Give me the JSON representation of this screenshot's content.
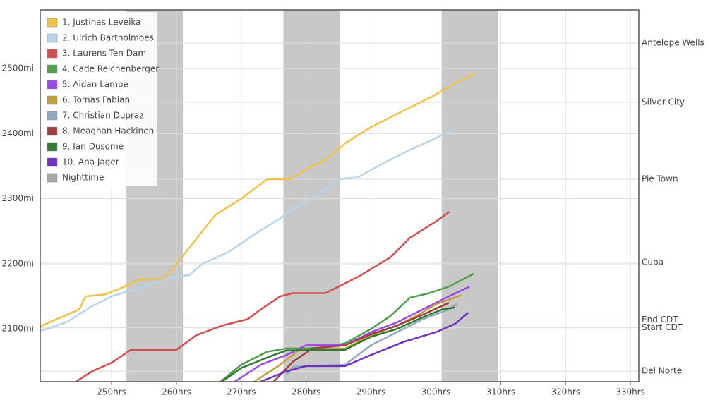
{
  "chart_data": {
    "type": "line",
    "xlim": [
      239,
      331.3
    ],
    "ylim": [
      2019,
      2590
    ],
    "y2lim": [
      2019,
      2590
    ],
    "xticks": [
      {
        "value": 250,
        "label": "250hrs"
      },
      {
        "value": 260,
        "label": "260hrs"
      },
      {
        "value": 270,
        "label": "270hrs"
      },
      {
        "value": 280,
        "label": "280hrs"
      },
      {
        "value": 290,
        "label": "290hrs"
      },
      {
        "value": 300,
        "label": "300hrs"
      },
      {
        "value": 310,
        "label": "310hrs"
      },
      {
        "value": 320,
        "label": "320hrs"
      },
      {
        "value": 330,
        "label": "330hrs"
      }
    ],
    "yticks": [
      {
        "value": 2100,
        "label": "2100mi"
      },
      {
        "value": 2200,
        "label": "2200mi"
      },
      {
        "value": 2300,
        "label": "2300mi"
      },
      {
        "value": 2400,
        "label": "2400mi"
      },
      {
        "value": 2500,
        "label": "2500mi"
      }
    ],
    "y2ticks": [
      {
        "value": 2035,
        "label": "Del Norte"
      },
      {
        "value": 2102,
        "label": "Start CDT"
      },
      {
        "value": 2114,
        "label": "End CDT"
      },
      {
        "value": 2202,
        "label": "Cuba"
      },
      {
        "value": 2330,
        "label": "Pie Town"
      },
      {
        "value": 2448,
        "label": "Silver City"
      },
      {
        "value": 2539,
        "label": "Antelope Wells"
      }
    ],
    "grid": true,
    "night": {
      "name": "Nighttime",
      "color": "#c8c8c8",
      "ranges": [
        [
          252.3,
          261.0
        ],
        [
          276.5,
          285.2
        ],
        [
          300.9,
          309.6
        ]
      ]
    },
    "series": [
      {
        "name": "1. Justinas Leveika",
        "color": "#f0c24a",
        "x": [
          239,
          245,
          246,
          249,
          252,
          254,
          258,
          260,
          262,
          266,
          270,
          274,
          277.5,
          280,
          283,
          286,
          290,
          295,
          300,
          303,
          306
        ],
        "values": [
          2104,
          2130,
          2150,
          2153,
          2165,
          2175,
          2177,
          2200,
          2225,
          2275,
          2300,
          2330,
          2330,
          2345,
          2360,
          2385,
          2410,
          2435,
          2460,
          2478,
          2492
        ]
      },
      {
        "name": "2. Ulrich Bartholmoes",
        "color": "#b8d4ea",
        "x": [
          239,
          243,
          247,
          250,
          254,
          259,
          262,
          264,
          268,
          272,
          276,
          278,
          281,
          285,
          288,
          292,
          296,
          300,
          303.4
        ],
        "values": [
          2097,
          2110,
          2135,
          2150,
          2162,
          2178,
          2183,
          2200,
          2218,
          2245,
          2270,
          2285,
          2300,
          2330,
          2333,
          2355,
          2375,
          2393,
          2410
        ]
      },
      {
        "name": "3. Laurens Ten Dam",
        "color": "#d05050",
        "x": [
          244.5,
          247,
          250,
          253,
          260,
          263,
          267,
          271,
          273,
          276,
          278,
          283,
          288,
          293,
          296,
          300,
          302.1
        ],
        "values": [
          2019,
          2035,
          2048,
          2068,
          2068,
          2090,
          2105,
          2115,
          2130,
          2150,
          2155,
          2155,
          2180,
          2210,
          2240,
          2265,
          2280
        ]
      },
      {
        "name": "4. Cade Reichenberger",
        "color": "#50a050",
        "x": [
          266.8,
          270,
          274,
          277,
          280,
          283,
          286,
          290,
          293,
          296,
          299,
          302,
          305.9
        ],
        "values": [
          2019,
          2045,
          2065,
          2070,
          2070,
          2072,
          2078,
          2100,
          2120,
          2148,
          2155,
          2165,
          2185
        ]
      },
      {
        "name": "5. Aidan Lampe",
        "color": "#9a48e8",
        "x": [
          269,
          273,
          277,
          280,
          286,
          290,
          294,
          298,
          302,
          305.2
        ],
        "values": [
          2019,
          2045,
          2060,
          2075,
          2075,
          2095,
          2110,
          2130,
          2150,
          2165
        ]
      },
      {
        "name": "6. Tomas Fabian",
        "color": "#c0a040",
        "x": [
          272,
          276,
          279,
          286,
          290,
          294,
          297,
          300,
          304
        ],
        "values": [
          2019,
          2045,
          2068,
          2070,
          2090,
          2105,
          2120,
          2138,
          2152
        ]
      },
      {
        "name": "7. Christian Dupraz",
        "color": "#90a8c0",
        "x": [
          277,
          278,
          286,
          290,
          294,
          298,
          302,
          303.3
        ],
        "values": [
          2030,
          2042,
          2045,
          2075,
          2095,
          2115,
          2130,
          2139
        ]
      },
      {
        "name": "8. Meaghan Hackinen",
        "color": "#a04040",
        "x": [
          275,
          278,
          281,
          286,
          290,
          294,
          298,
          302
        ],
        "values": [
          2019,
          2050,
          2070,
          2075,
          2092,
          2105,
          2122,
          2140
        ]
      },
      {
        "name": "9. Ian Dusome",
        "color": "#307a30",
        "x": [
          267,
          270,
          275,
          277,
          286,
          290,
          294,
          298,
          301,
          303
        ],
        "values": [
          2019,
          2040,
          2060,
          2067,
          2068,
          2088,
          2100,
          2118,
          2130,
          2133
        ]
      },
      {
        "name": "10. Ana Jager",
        "color": "#7030c0",
        "x": [
          273,
          277,
          280,
          286,
          290,
          295,
          300,
          303,
          305
        ],
        "values": [
          2019,
          2035,
          2043,
          2043,
          2060,
          2080,
          2095,
          2108,
          2125
        ]
      }
    ]
  }
}
